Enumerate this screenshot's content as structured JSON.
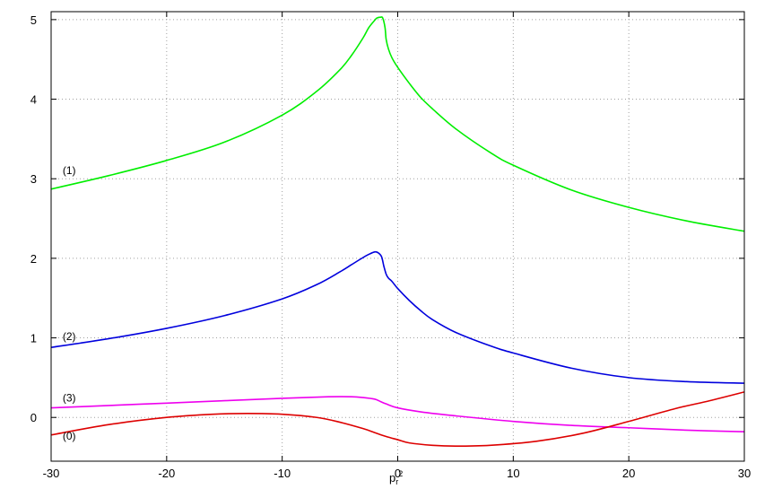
{
  "chart_data": {
    "type": "line",
    "title": "",
    "xlabel": "p",
    "xlabel_sub": "r",
    "xlabel_sup": "2",
    "ylabel": "",
    "xlim": [
      -30,
      30
    ],
    "ylim": [
      -0.55,
      5.1
    ],
    "xticks": [
      -30,
      -20,
      -10,
      0,
      10,
      20,
      30
    ],
    "yticks": [
      0,
      1,
      2,
      3,
      4,
      5
    ],
    "grid": true,
    "series": [
      {
        "name": "(1)",
        "color": "#00ee00",
        "x": [
          -30,
          -25,
          -20,
          -15,
          -10,
          -7,
          -5,
          -4,
          -3,
          -2.5,
          -2,
          -1.8,
          -1.5,
          -1.3,
          -1.1,
          -1.0,
          -0.8,
          -0.5,
          0,
          1,
          2,
          3,
          5,
          8,
          10,
          15,
          20,
          25,
          30
        ],
        "y": [
          2.87,
          3.04,
          3.23,
          3.46,
          3.8,
          4.1,
          4.37,
          4.55,
          4.77,
          4.9,
          4.99,
          5.02,
          5.03,
          5.02,
          4.9,
          4.75,
          4.63,
          4.52,
          4.4,
          4.2,
          4.02,
          3.88,
          3.63,
          3.33,
          3.17,
          2.86,
          2.64,
          2.47,
          2.34
        ]
      },
      {
        "name": "(2)",
        "color": "#0000dd",
        "x": [
          -30,
          -25,
          -20,
          -15,
          -10,
          -7,
          -5,
          -4,
          -3,
          -2.5,
          -2,
          -1.7,
          -1.4,
          -1.2,
          -1.0,
          -0.8,
          -0.5,
          0,
          1,
          2,
          3,
          5,
          8,
          10,
          15,
          20,
          25,
          30
        ],
        "y": [
          0.88,
          0.99,
          1.12,
          1.28,
          1.49,
          1.67,
          1.83,
          1.92,
          2.01,
          2.05,
          2.08,
          2.07,
          2.02,
          1.9,
          1.8,
          1.75,
          1.71,
          1.62,
          1.47,
          1.34,
          1.23,
          1.07,
          0.9,
          0.81,
          0.62,
          0.5,
          0.45,
          0.43
        ]
      },
      {
        "name": "(3)",
        "color": "#ee00ee",
        "x": [
          -30,
          -25,
          -20,
          -15,
          -10,
          -6,
          -4,
          -3,
          -2,
          -1.5,
          -1,
          0,
          2,
          5,
          10,
          15,
          20,
          25,
          30
        ],
        "y": [
          0.12,
          0.15,
          0.18,
          0.21,
          0.24,
          0.26,
          0.26,
          0.25,
          0.23,
          0.2,
          0.17,
          0.12,
          0.07,
          0.02,
          -0.05,
          -0.1,
          -0.13,
          -0.16,
          -0.18
        ]
      },
      {
        "name": "(0)",
        "color": "#dd0000",
        "x": [
          -30,
          -25,
          -20,
          -16,
          -13,
          -10,
          -7,
          -5,
          -3,
          -2,
          -1,
          0,
          1,
          3,
          5,
          8,
          12,
          16,
          20,
          24,
          27,
          30
        ],
        "y": [
          -0.22,
          -0.09,
          0.0,
          0.04,
          0.05,
          0.04,
          0.0,
          -0.06,
          -0.14,
          -0.19,
          -0.24,
          -0.28,
          -0.32,
          -0.35,
          -0.36,
          -0.35,
          -0.3,
          -0.2,
          -0.05,
          0.11,
          0.21,
          0.32
        ]
      }
    ],
    "series_labels": [
      {
        "text": "(1)",
        "x": -29,
        "y": 3.06
      },
      {
        "text": "(2)",
        "x": -29,
        "y": 0.97
      },
      {
        "text": "(3)",
        "x": -29,
        "y": 0.2
      },
      {
        "text": "(0)",
        "x": -29,
        "y": -0.28
      }
    ]
  }
}
